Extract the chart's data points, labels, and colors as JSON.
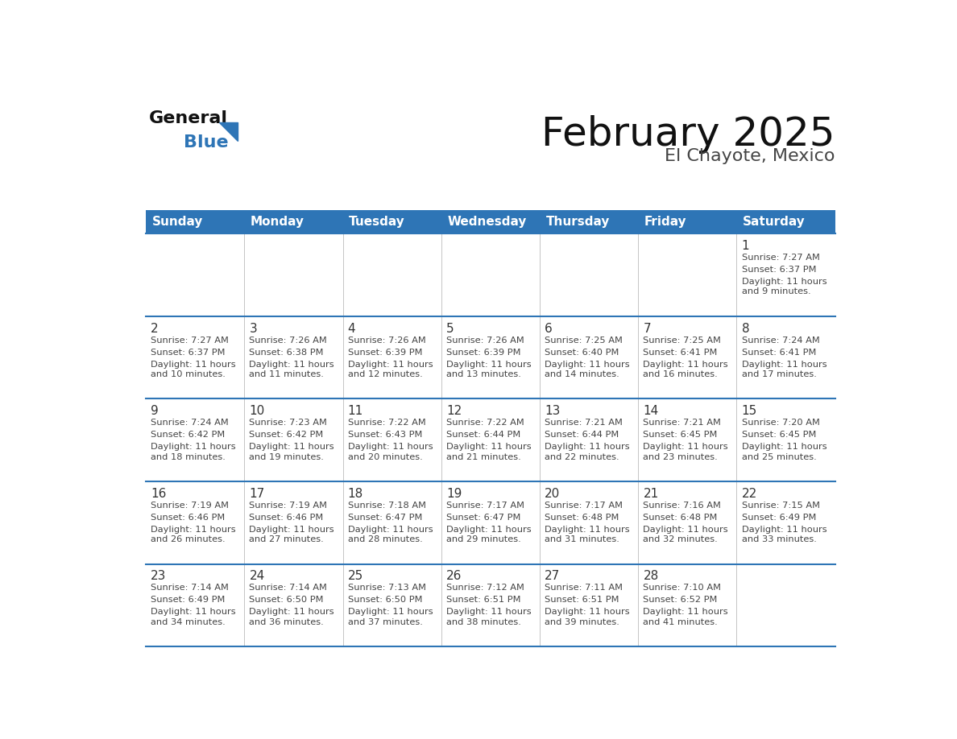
{
  "title": "February 2025",
  "subtitle": "El Chayote, Mexico",
  "header_bg": "#2E75B6",
  "header_text_color": "#FFFFFF",
  "days_of_week": [
    "Sunday",
    "Monday",
    "Tuesday",
    "Wednesday",
    "Thursday",
    "Friday",
    "Saturday"
  ],
  "bg_color": "#FFFFFF",
  "line_color": "#2E75B6",
  "day_num_color": "#333333",
  "info_text_color": "#444444",
  "calendar_data": [
    [
      null,
      null,
      null,
      null,
      null,
      null,
      {
        "day": "1",
        "sunrise": "7:27 AM",
        "sunset": "6:37 PM",
        "daylight": "11 hours\nand 9 minutes."
      }
    ],
    [
      {
        "day": "2",
        "sunrise": "7:27 AM",
        "sunset": "6:37 PM",
        "daylight": "11 hours\nand 10 minutes."
      },
      {
        "day": "3",
        "sunrise": "7:26 AM",
        "sunset": "6:38 PM",
        "daylight": "11 hours\nand 11 minutes."
      },
      {
        "day": "4",
        "sunrise": "7:26 AM",
        "sunset": "6:39 PM",
        "daylight": "11 hours\nand 12 minutes."
      },
      {
        "day": "5",
        "sunrise": "7:26 AM",
        "sunset": "6:39 PM",
        "daylight": "11 hours\nand 13 minutes."
      },
      {
        "day": "6",
        "sunrise": "7:25 AM",
        "sunset": "6:40 PM",
        "daylight": "11 hours\nand 14 minutes."
      },
      {
        "day": "7",
        "sunrise": "7:25 AM",
        "sunset": "6:41 PM",
        "daylight": "11 hours\nand 16 minutes."
      },
      {
        "day": "8",
        "sunrise": "7:24 AM",
        "sunset": "6:41 PM",
        "daylight": "11 hours\nand 17 minutes."
      }
    ],
    [
      {
        "day": "9",
        "sunrise": "7:24 AM",
        "sunset": "6:42 PM",
        "daylight": "11 hours\nand 18 minutes."
      },
      {
        "day": "10",
        "sunrise": "7:23 AM",
        "sunset": "6:42 PM",
        "daylight": "11 hours\nand 19 minutes."
      },
      {
        "day": "11",
        "sunrise": "7:22 AM",
        "sunset": "6:43 PM",
        "daylight": "11 hours\nand 20 minutes."
      },
      {
        "day": "12",
        "sunrise": "7:22 AM",
        "sunset": "6:44 PM",
        "daylight": "11 hours\nand 21 minutes."
      },
      {
        "day": "13",
        "sunrise": "7:21 AM",
        "sunset": "6:44 PM",
        "daylight": "11 hours\nand 22 minutes."
      },
      {
        "day": "14",
        "sunrise": "7:21 AM",
        "sunset": "6:45 PM",
        "daylight": "11 hours\nand 23 minutes."
      },
      {
        "day": "15",
        "sunrise": "7:20 AM",
        "sunset": "6:45 PM",
        "daylight": "11 hours\nand 25 minutes."
      }
    ],
    [
      {
        "day": "16",
        "sunrise": "7:19 AM",
        "sunset": "6:46 PM",
        "daylight": "11 hours\nand 26 minutes."
      },
      {
        "day": "17",
        "sunrise": "7:19 AM",
        "sunset": "6:46 PM",
        "daylight": "11 hours\nand 27 minutes."
      },
      {
        "day": "18",
        "sunrise": "7:18 AM",
        "sunset": "6:47 PM",
        "daylight": "11 hours\nand 28 minutes."
      },
      {
        "day": "19",
        "sunrise": "7:17 AM",
        "sunset": "6:47 PM",
        "daylight": "11 hours\nand 29 minutes."
      },
      {
        "day": "20",
        "sunrise": "7:17 AM",
        "sunset": "6:48 PM",
        "daylight": "11 hours\nand 31 minutes."
      },
      {
        "day": "21",
        "sunrise": "7:16 AM",
        "sunset": "6:48 PM",
        "daylight": "11 hours\nand 32 minutes."
      },
      {
        "day": "22",
        "sunrise": "7:15 AM",
        "sunset": "6:49 PM",
        "daylight": "11 hours\nand 33 minutes."
      }
    ],
    [
      {
        "day": "23",
        "sunrise": "7:14 AM",
        "sunset": "6:49 PM",
        "daylight": "11 hours\nand 34 minutes."
      },
      {
        "day": "24",
        "sunrise": "7:14 AM",
        "sunset": "6:50 PM",
        "daylight": "11 hours\nand 36 minutes."
      },
      {
        "day": "25",
        "sunrise": "7:13 AM",
        "sunset": "6:50 PM",
        "daylight": "11 hours\nand 37 minutes."
      },
      {
        "day": "26",
        "sunrise": "7:12 AM",
        "sunset": "6:51 PM",
        "daylight": "11 hours\nand 38 minutes."
      },
      {
        "day": "27",
        "sunrise": "7:11 AM",
        "sunset": "6:51 PM",
        "daylight": "11 hours\nand 39 minutes."
      },
      {
        "day": "28",
        "sunrise": "7:10 AM",
        "sunset": "6:52 PM",
        "daylight": "11 hours\nand 41 minutes."
      },
      null
    ]
  ],
  "logo_general_color": "#111111",
  "logo_blue_color": "#2E75B6",
  "logo_triangle_color": "#2E75B6"
}
